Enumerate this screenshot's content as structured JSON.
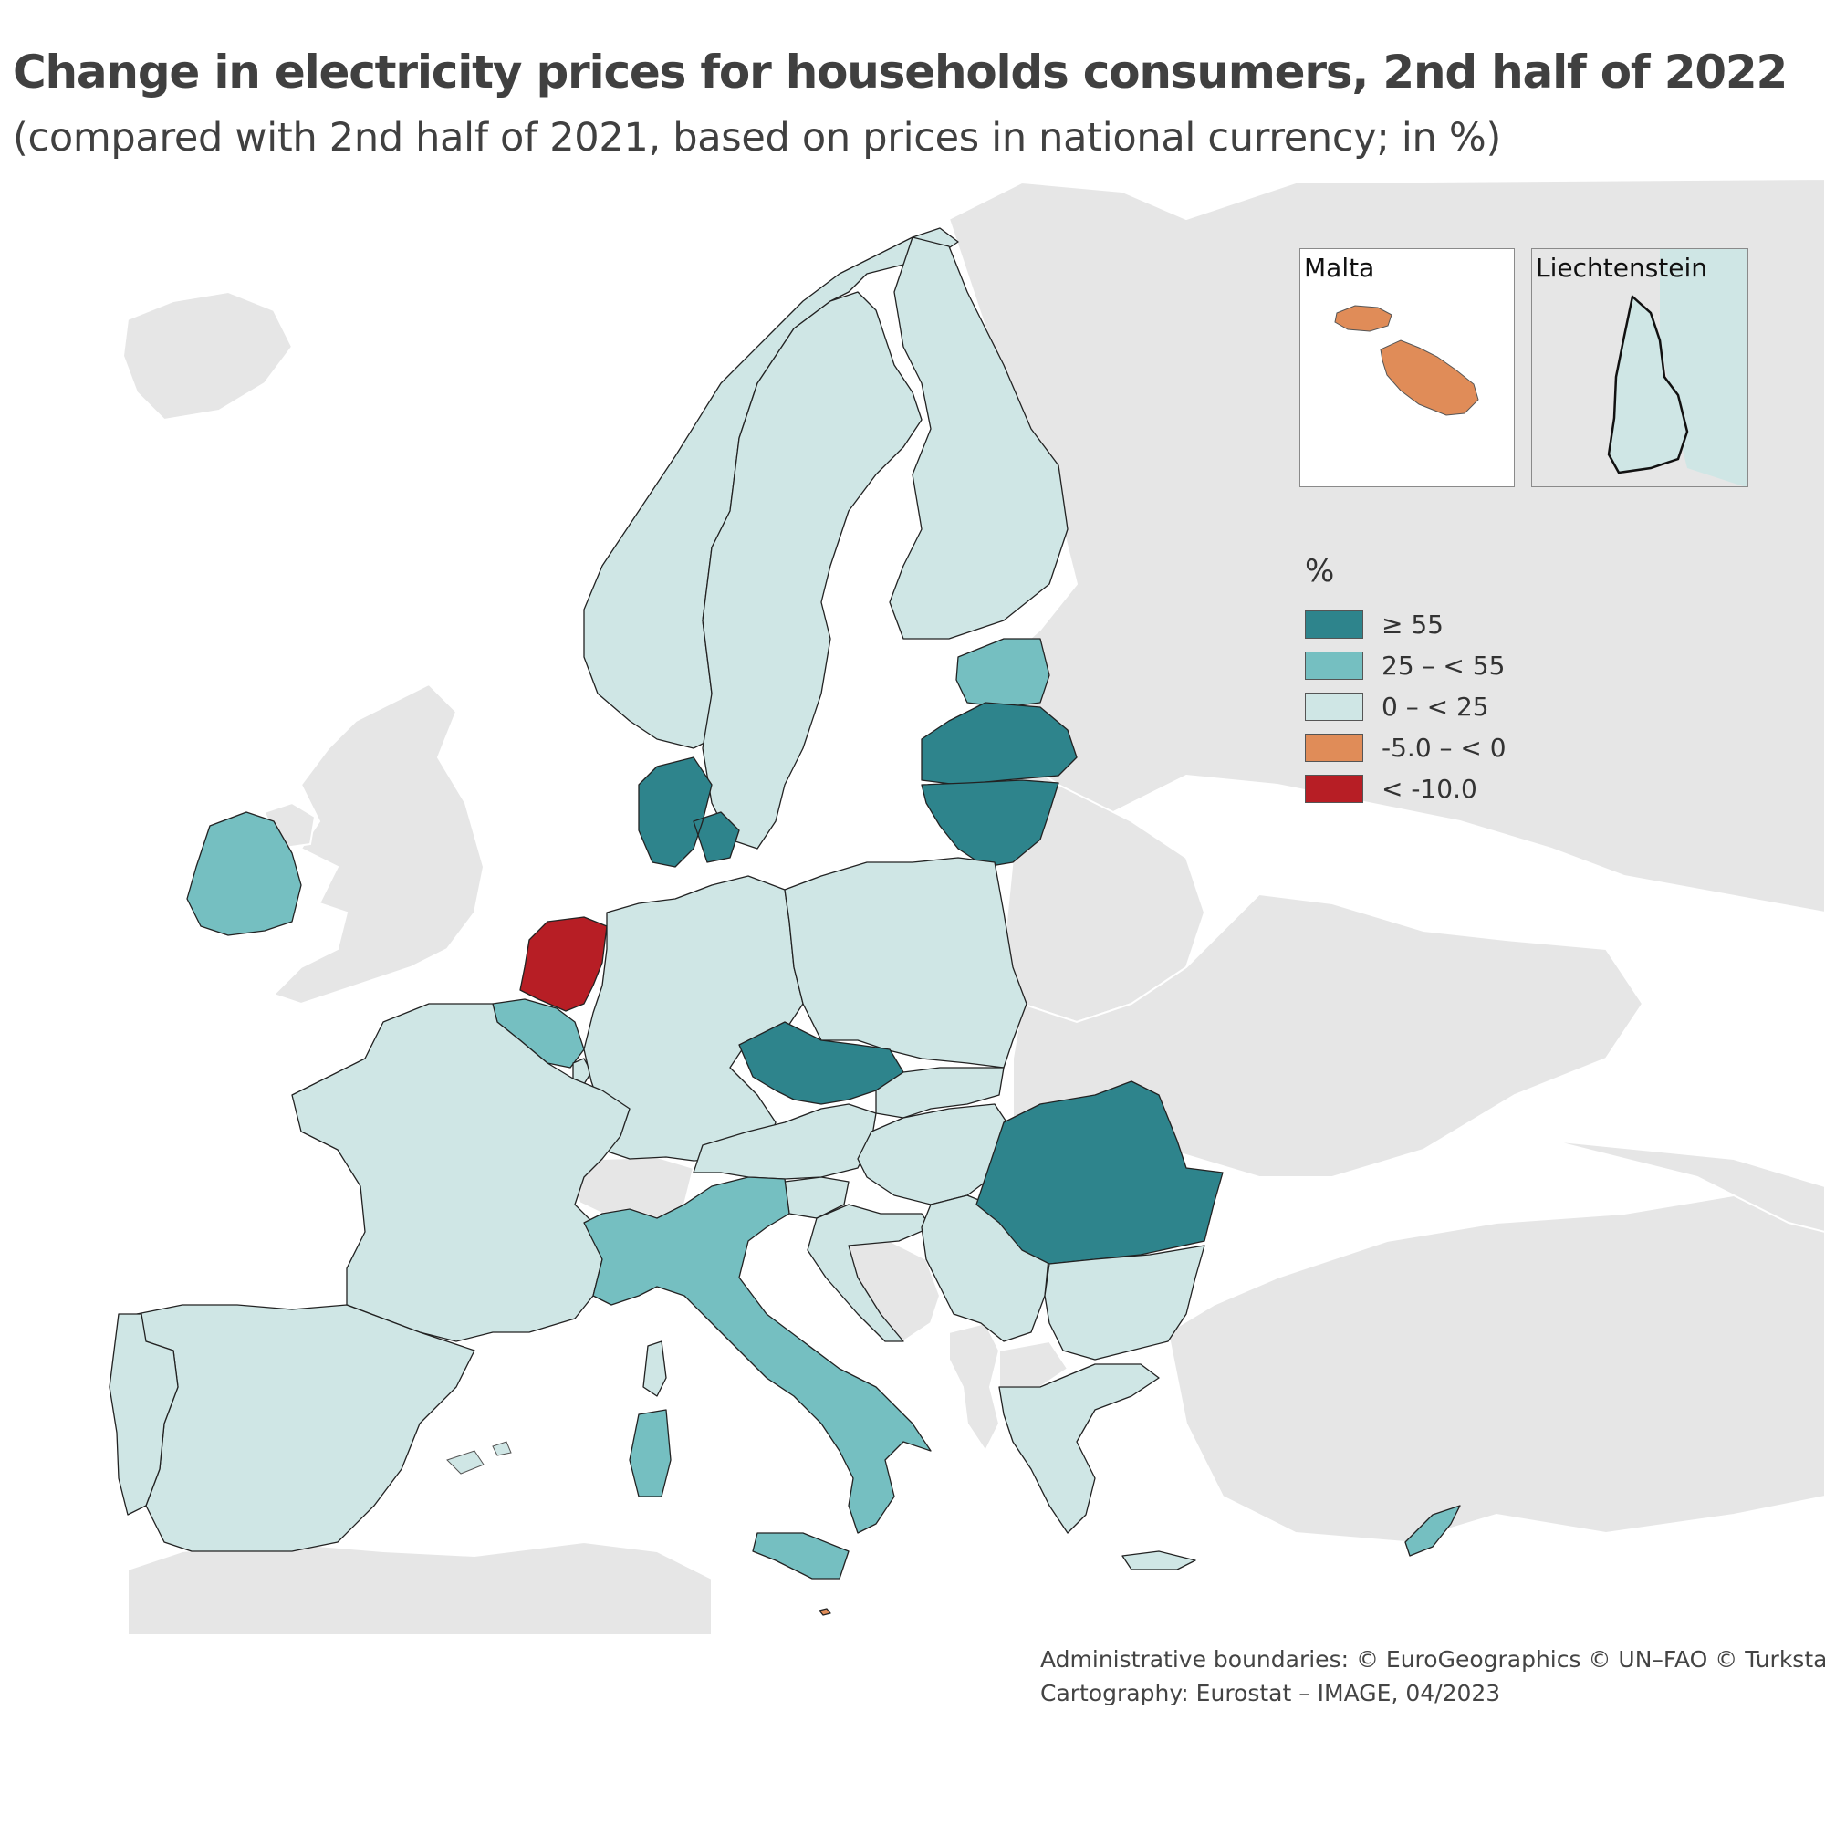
{
  "title": "Change in electricity prices for households consumers, 2nd half of 2022",
  "subtitle": "(compared with 2nd half of 2021, based on prices in national currency; in %)",
  "colors": {
    "background_land": "#e6e6e6",
    "sea": "#ffffff",
    "class_ge55": "#2e848c",
    "class_25_55": "#75bfc1",
    "class_0_25": "#cfe6e5",
    "class_neg5_0": "#e08c58",
    "class_lt_neg10": "#b71e25"
  },
  "legend": {
    "title": "%",
    "items": [
      {
        "label": "≥ 55",
        "color": "#2e848c"
      },
      {
        "label": "25 – < 55",
        "color": "#75bfc1"
      },
      {
        "label": "0 – < 25",
        "color": "#cfe6e5"
      },
      {
        "label": "-5.0 – < 0",
        "color": "#e08c58"
      },
      {
        "label": "< -10.0",
        "color": "#b71e25"
      }
    ]
  },
  "insets": {
    "malta": {
      "label": "Malta",
      "class": "-5.0 – < 0"
    },
    "liechtenstein": {
      "label": "Liechtenstein",
      "class": "0 – < 25"
    }
  },
  "countries": [
    {
      "id": "NL",
      "class": "< -10.0"
    },
    {
      "id": "MT",
      "class": "-5.0 – < 0"
    },
    {
      "id": "DK",
      "class": "≥ 55"
    },
    {
      "id": "LV",
      "class": "≥ 55"
    },
    {
      "id": "LT",
      "class": "≥ 55"
    },
    {
      "id": "CZ",
      "class": "≥ 55"
    },
    {
      "id": "RO",
      "class": "≥ 55"
    },
    {
      "id": "IE",
      "class": "25 – < 55"
    },
    {
      "id": "BE",
      "class": "25 – < 55"
    },
    {
      "id": "IT",
      "class": "25 – < 55"
    },
    {
      "id": "EE",
      "class": "25 – < 55"
    },
    {
      "id": "CY",
      "class": "25 – < 55"
    },
    {
      "id": "NO",
      "class": "0 – < 25"
    },
    {
      "id": "SE",
      "class": "0 – < 25"
    },
    {
      "id": "FI",
      "class": "0 – < 25"
    },
    {
      "id": "DE",
      "class": "0 – < 25"
    },
    {
      "id": "PL",
      "class": "0 – < 25"
    },
    {
      "id": "FR",
      "class": "0 – < 25"
    },
    {
      "id": "ES",
      "class": "0 – < 25"
    },
    {
      "id": "PT",
      "class": "0 – < 25"
    },
    {
      "id": "AT",
      "class": "0 – < 25"
    },
    {
      "id": "SK",
      "class": "0 – < 25"
    },
    {
      "id": "HU",
      "class": "0 – < 25"
    },
    {
      "id": "SI",
      "class": "0 – < 25"
    },
    {
      "id": "HR",
      "class": "0 – < 25"
    },
    {
      "id": "RS",
      "class": "0 – < 25"
    },
    {
      "id": "BG",
      "class": "0 – < 25"
    },
    {
      "id": "GR",
      "class": "0 – < 25"
    },
    {
      "id": "LU",
      "class": "0 – < 25"
    },
    {
      "id": "LI",
      "class": "0 – < 25"
    }
  ],
  "credits": {
    "line1": "Administrative boundaries: © EuroGeographics © UN–FAO © Turkstat",
    "line2": "Cartography: Eurostat – IMAGE, 04/2023"
  }
}
